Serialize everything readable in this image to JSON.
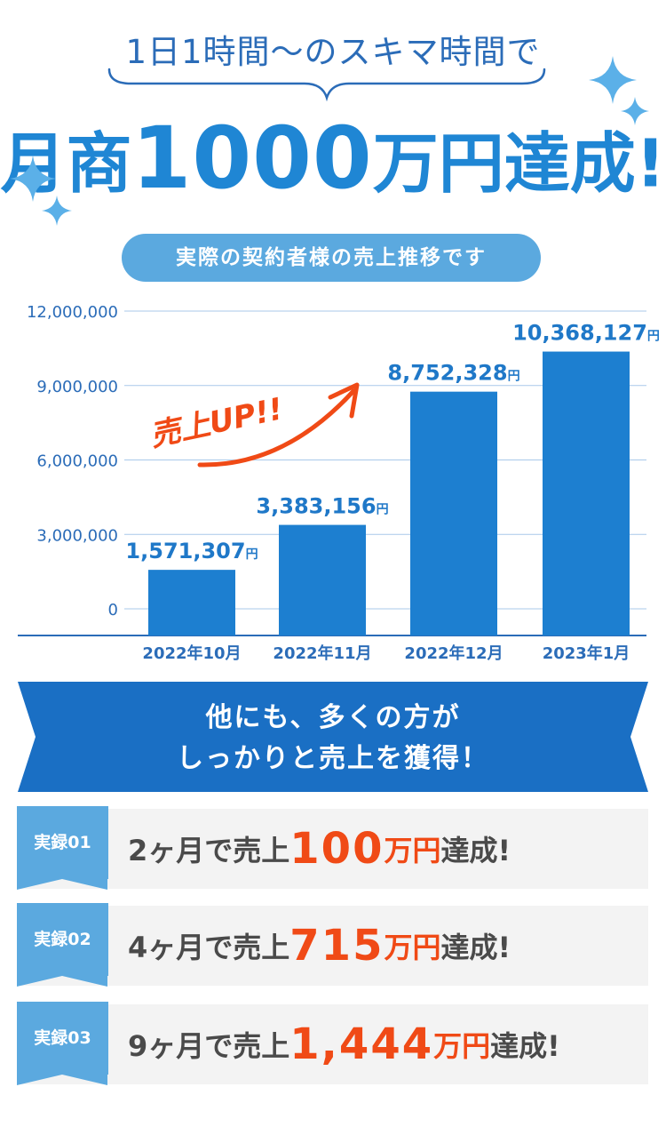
{
  "header": {
    "subtitle": "1日1時間〜のスキマ時間で",
    "headline_pre": "月商",
    "headline_num": "1000",
    "headline_post": "万円達成!"
  },
  "badge": "実際の契約者様の売上推移です",
  "chart_data": {
    "type": "bar",
    "categories": [
      "2022年10月",
      "2022年11月",
      "2022年12月",
      "2023年1月"
    ],
    "values": [
      1571307,
      3383156,
      8752328,
      10368127
    ],
    "value_labels": [
      "1,571,307",
      "3,383,156",
      "8,752,328",
      "10,368,127"
    ],
    "value_unit": "円",
    "yticks": [
      "0",
      "3,000,000",
      "6,000,000",
      "9,000,000",
      "12,000,000"
    ],
    "ylim": [
      0,
      12000000
    ],
    "grid": true,
    "annotation": "売上UP!!",
    "colors": {
      "bar": "#1d7fd0",
      "label": "#1f78c8",
      "axis": "#2b6cb8",
      "annotation": "#f04a16"
    }
  },
  "banner": {
    "line1": "他にも、多くの方が",
    "line2": "しっかりと売上を獲得！"
  },
  "records": [
    {
      "tag": "実録01",
      "pre": "2ヶ月で売上",
      "amount": "100",
      "unit": "万円",
      "post": "達成!"
    },
    {
      "tag": "実録02",
      "pre": "4ヶ月で売上",
      "amount": "715",
      "unit": "万円",
      "post": "達成!"
    },
    {
      "tag": "実録03",
      "pre": "9ヶ月で売上",
      "amount": "1,444",
      "unit": "万円",
      "post": "達成!"
    }
  ]
}
